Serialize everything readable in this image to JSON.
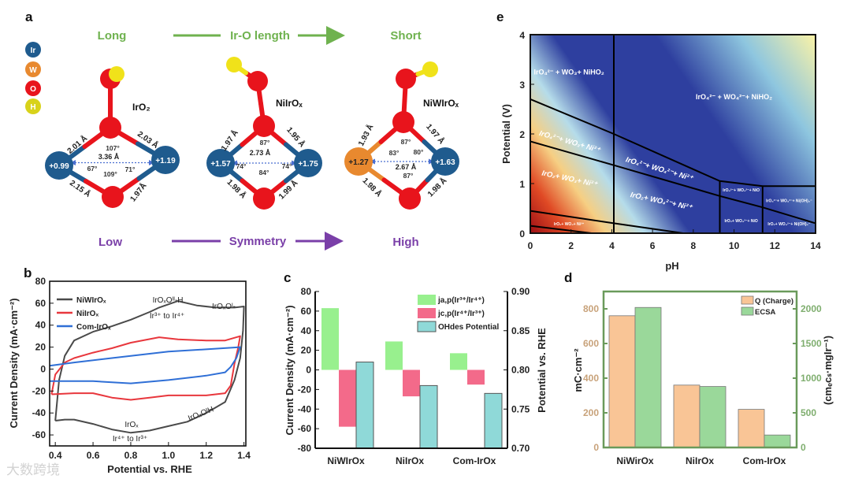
{
  "panel_a": {
    "label": "a",
    "legend": [
      "Ir",
      "W",
      "O",
      "H"
    ],
    "colors": {
      "Ir": "#1f5b8e",
      "W": "#e8892f",
      "O": "#e8141c",
      "H": "#f0e21a",
      "green": "#6fb24f",
      "purple": "#7a3fa8"
    },
    "top_left": "Long",
    "top_mid": "Ir-O length",
    "top_right": "Short",
    "bottom_left": "Low",
    "bottom_mid": "Symmetry",
    "bottom_right": "High",
    "structures": [
      {
        "name": "IrO₂",
        "left_charge": "+0.99",
        "right_charge": "+1.19",
        "bonds": [
          "2.01 Å",
          "2.03 Å",
          "2.15 Å",
          "1.97Å"
        ],
        "distance": "3.36 Å",
        "angles": [
          "107°",
          "67°",
          "109°",
          "71°"
        ]
      },
      {
        "name": "NiIrOₓ",
        "left_charge": "+1.57",
        "right_charge": "+1.75",
        "bonds": [
          "1.97 Å",
          "1.95 Å",
          "1.98 Å",
          "1.99 Å"
        ],
        "distance": "2.73 Å",
        "angles": [
          "87°",
          "74°",
          "84°",
          "74°"
        ]
      },
      {
        "name": "NiWIrOₓ",
        "left_charge": "+1.27",
        "right_charge": "+1.63",
        "bonds": [
          "1.93 Å",
          "1.97 Å",
          "1.98 Å",
          "1.98 Å"
        ],
        "distance": "2.67 Å",
        "angles": [
          "87°",
          "83°",
          "80°",
          "87°"
        ]
      }
    ]
  },
  "watermark": "大数跨境",
  "chart_data": [
    {
      "panel": "b",
      "type": "line",
      "xlabel": "Potential vs. RHE",
      "ylabel": "Current Density (mA·cm⁻²)",
      "xlim": [
        0.37,
        1.41
      ],
      "ylim": [
        -70,
        80
      ],
      "xticks": [
        0.4,
        0.6,
        0.8,
        1.0,
        1.2,
        1.4
      ],
      "yticks": [
        -60,
        -40,
        -20,
        0,
        20,
        40,
        60,
        80
      ],
      "legend_position": "top-left",
      "series": [
        {
          "name": "NiWIrOₓ",
          "color": "#4a4a4a",
          "x": [
            0.4,
            0.42,
            0.45,
            0.5,
            0.6,
            0.7,
            0.8,
            0.9,
            0.95,
            1.05,
            1.15,
            1.25,
            1.35,
            1.4,
            1.395,
            1.38,
            1.35,
            1.3,
            1.2,
            1.1,
            1.0,
            0.9,
            0.8,
            0.7,
            0.6,
            0.5,
            0.45,
            0.4
          ],
          "y": [
            -47,
            -10,
            12,
            26,
            34,
            39,
            45,
            52,
            56,
            62,
            58,
            56,
            56,
            57,
            35,
            10,
            -10,
            -30,
            -40,
            -48,
            -52,
            -56,
            -58,
            -55,
            -50,
            -46,
            -46,
            -47
          ]
        },
        {
          "name": "NiIrOₓ",
          "color": "#e8373d",
          "x": [
            0.38,
            0.4,
            0.45,
            0.5,
            0.6,
            0.7,
            0.8,
            0.95,
            1.05,
            1.2,
            1.3,
            1.38,
            1.37,
            1.35,
            1.33,
            1.3,
            1.2,
            1.0,
            0.9,
            0.8,
            0.7,
            0.6,
            0.5,
            0.38
          ],
          "y": [
            -23,
            -5,
            6,
            10,
            15,
            19,
            24,
            29,
            27,
            26,
            26,
            30,
            20,
            5,
            -15,
            -22,
            -24,
            -24,
            -26,
            -28,
            -26,
            -22,
            -22,
            -23
          ]
        },
        {
          "name": "Com-IrOₓ",
          "color": "#2f6fd6",
          "x": [
            0.37,
            0.5,
            0.7,
            0.9,
            1.0,
            1.2,
            1.38,
            1.36,
            1.33,
            1.3,
            1.2,
            1.0,
            0.8,
            0.6,
            0.37
          ],
          "y": [
            3,
            6,
            10,
            14,
            16,
            18,
            20,
            10,
            2,
            -3,
            -6,
            -10,
            -13,
            -11,
            -11
          ]
        }
      ],
      "annotations": [
        "IrOₓOᴵᴵ-H",
        "Ir³⁺ to Ir⁴⁺",
        "IrOₓOᴵ-",
        "IrOₓOᴵH",
        "IrOₓ",
        "Ir⁴⁺ to Ir³⁺"
      ]
    },
    {
      "panel": "c",
      "type": "bar",
      "categories": [
        "NiWIrOx",
        "NiIrOx",
        "Com-IrOx"
      ],
      "ylabel": "Current Density (mA·cm⁻²)",
      "ylabel_right": "Potential vs. RHE",
      "ylim": [
        -80,
        80
      ],
      "ylim_right": [
        0.7,
        0.9
      ],
      "yticks": [
        -80,
        -60,
        -40,
        -20,
        0,
        20,
        40,
        60,
        80
      ],
      "yticks_right": [
        "0.70",
        "0.75",
        "0.80",
        "0.85",
        "0.90"
      ],
      "legend_position": "top-right",
      "series": [
        {
          "name": "ja,p(Ir³⁺/Ir⁴⁺)",
          "axis": "left",
          "color": "#98f08e",
          "values": [
            63,
            29,
            17
          ]
        },
        {
          "name": "jc,p(Ir⁴⁺/Ir³⁺)",
          "axis": "left",
          "color": "#f36a8a",
          "values": [
            -58,
            -27,
            -15
          ]
        },
        {
          "name": "OHdes Potential",
          "axis": "right",
          "color": "#8fd9d8",
          "values": [
            0.81,
            0.78,
            0.77
          ]
        }
      ]
    },
    {
      "panel": "d",
      "type": "bar",
      "categories": [
        "NiWirOx",
        "NiIrOx",
        "Com-IrOx"
      ],
      "ylabel": "mC·cm⁻²",
      "ylabel_right": "(cmₑcₛ·mgIr⁻¹)",
      "ylim": [
        0,
        900
      ],
      "ylim_right": [
        0,
        2250
      ],
      "yticks": [
        0,
        200,
        400,
        600,
        800
      ],
      "yticks_right": [
        0,
        500,
        1000,
        1500,
        2000
      ],
      "legend_position": "top-right",
      "series": [
        {
          "name": "Q (Charge)",
          "axis": "left",
          "color": "#f9c596",
          "values": [
            760,
            360,
            220
          ]
        },
        {
          "name": "ECSA",
          "axis": "right",
          "color": "#9ad89a",
          "values": [
            2020,
            880,
            180
          ]
        }
      ]
    },
    {
      "panel": "e",
      "type": "heatmap",
      "xlabel": "pH",
      "ylabel": "Potential (V)",
      "xlim": [
        0,
        14
      ],
      "ylim": [
        0,
        4
      ],
      "xticks": [
        0,
        2,
        4,
        6,
        8,
        10,
        12,
        14
      ],
      "yticks": [
        0,
        1,
        2,
        3,
        4
      ],
      "boundaries": [
        [
          [
            0,
            2.7
          ],
          [
            4.1,
            2.0
          ],
          [
            9.3,
            1.05
          ],
          [
            11.4,
            0.95
          ],
          [
            14,
            0.95
          ]
        ],
        [
          [
            0,
            1.85
          ],
          [
            4.1,
            1.37
          ],
          [
            9.3,
            0.75
          ],
          [
            11.4,
            0.52
          ],
          [
            14,
            0.2
          ]
        ],
        [
          [
            0,
            0.45
          ],
          [
            4.1,
            0.2
          ],
          [
            7.5,
            0
          ]
        ],
        [
          [
            0,
            0.15
          ],
          [
            3,
            0
          ]
        ],
        [
          [
            4.1,
            0
          ],
          [
            4.1,
            4
          ]
        ],
        [
          [
            9.3,
            0
          ],
          [
            9.3,
            1.05
          ]
        ],
        [
          [
            11.4,
            0
          ],
          [
            11.4,
            0.95
          ]
        ]
      ],
      "regions": [
        "IrO₄²⁻ + WO₃+ NiHO₂",
        "IrO₄²⁻ + WO₄²⁻+ NiHO₂",
        "IrO₄²⁻+ WO₃+ Ni²⁺",
        "IrO₄²⁻+ WO₄²⁻+ Ni²⁺",
        "IrO₂+ WO₃+ Ni²⁺",
        "IrO₂+ WO₄²⁻+ Ni²⁺",
        "IrO₄²⁻+ WO₄²⁻+ NiO",
        "IrO₄²⁻+ WO₄²⁻+ Ni(OH)₃⁻",
        "IrO₂+ WO₄²⁻+ NiO",
        "IrO₂+ WO₄²⁻+ Ni(OH)₃⁻",
        "IrO₂+ WO₃+ Ni²⁺"
      ]
    }
  ],
  "panel_labels": {
    "b": "b",
    "c": "c",
    "d": "d",
    "e": "e"
  }
}
